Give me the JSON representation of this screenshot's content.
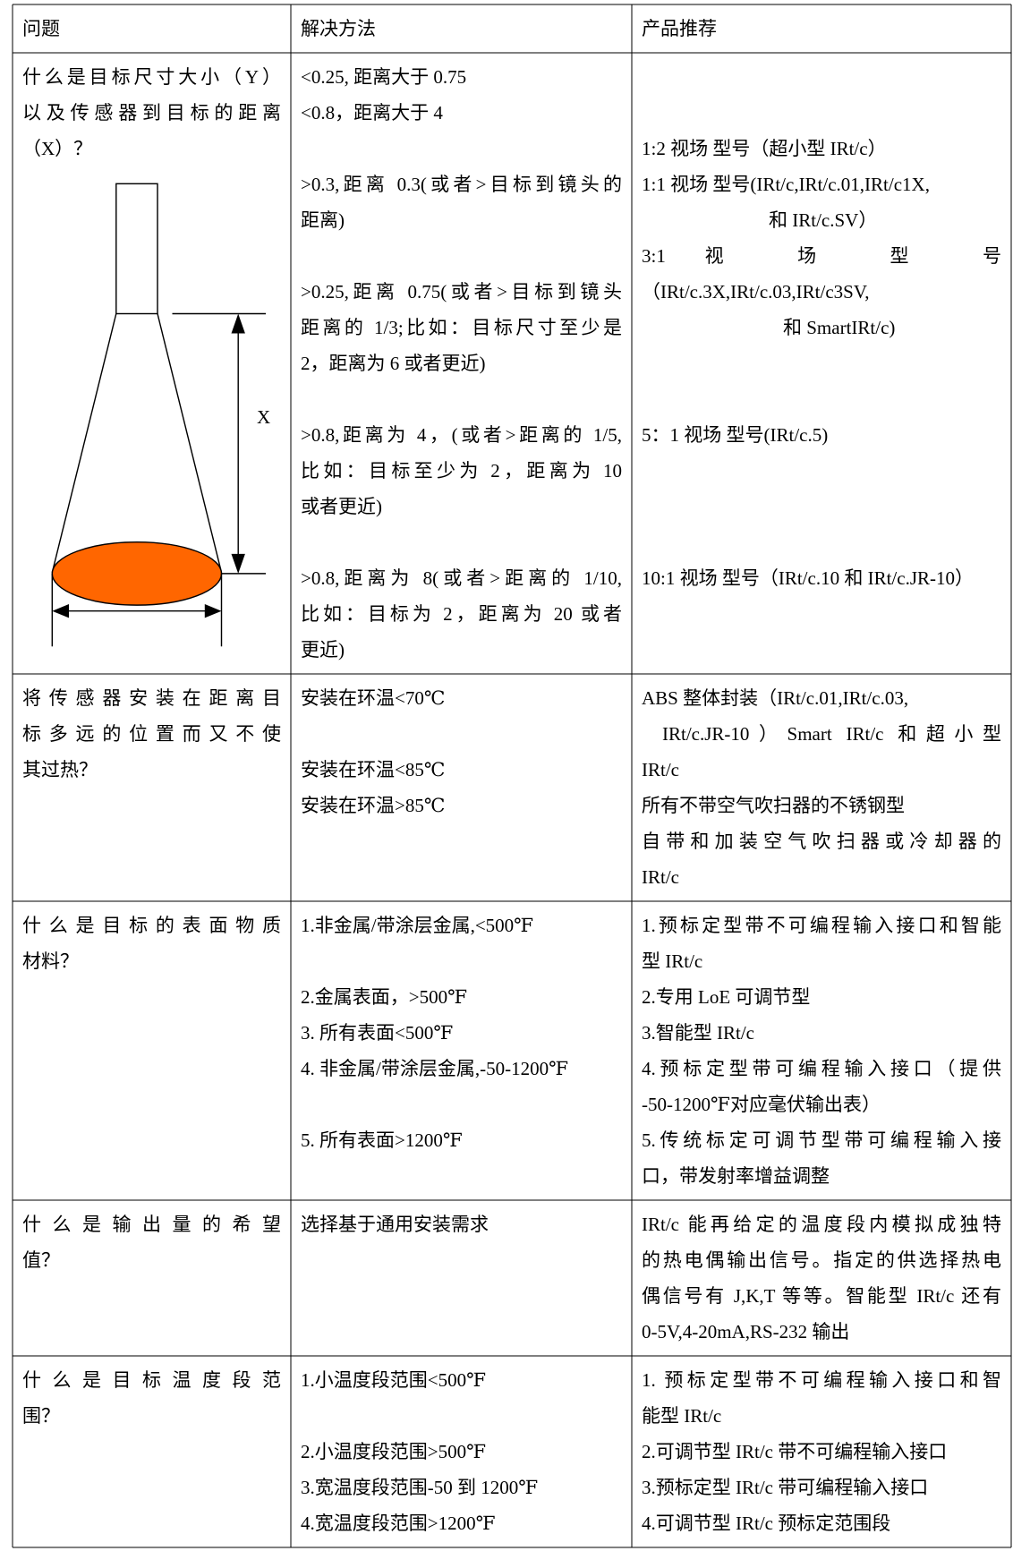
{
  "header": [
    "问题",
    "解决方法",
    "产品推荐"
  ],
  "diagram": {
    "label": "X"
  },
  "rows": [
    {
      "question": [
        "什么是目标尺寸大小（Y）",
        "以及传感器到目标的距离",
        "（X）？"
      ],
      "solution": [
        "<0.25, 距离大于 0.75",
        "<0.8，距离大于 4",
        ">0.3,距离 0.3(或者>目标到镜头的",
        "距离)",
        ">0.25,距离 0.75(或者>目标到镜头",
        "距离的 1/3;比如：目标尺寸至少是",
        "2，距离为 6 或者更近)",
        ">0.8,距离为 4，(或者>距离的 1/5,",
        "比如：目标至少为 2，距离为 10",
        "或者更近)",
        ">0.8,距离为 8(或者>距离的 1/10,",
        "比如：目标为 2，距离为 20 或者",
        "更近)"
      ],
      "products": [
        "1:2 视场 型号（超小型 IRt/c）",
        "1:1 视场 型号(IRt/c,IRt/c.01,IRt/c1X,",
        "和 IRt/c.SV）",
        "3:1 视 场 型 号",
        "（IRt/c.3X,IRt/c.03,IRt/c3SV,",
        "和 SmartIRt/c)",
        "5：1 视场 型号(IRt/c.5)",
        "10:1 视场 型号（IRt/c.10 和 IRt/c.JR-10）"
      ]
    },
    {
      "question": [
        "将传感器安装在距离目",
        "标多远的位置而又不使",
        "其过热？"
      ],
      "solution": [
        "安装在环温<70℃",
        "安装在环温<85℃",
        "安装在环温>85℃"
      ],
      "products": [
        "ABS 整体封装（IRt/c.01,IRt/c.03,",
        "IRt/c.JR-10）Smart IRt/c 和超小型",
        "IRt/c",
        "所有不带空气吹扫器的不锈钢型",
        "自带和加装空气吹扫器或冷却器的",
        "IRt/c"
      ]
    },
    {
      "question": [
        "什么是目标的表面物质",
        "材料？"
      ],
      "solution": [
        "1.非金属/带涂层金属,<500℉",
        "2.金属表面，>500℉",
        "3. 所有表面<500℉",
        "4. 非金属/带涂层金属,-50-1200℉",
        "5. 所有表面>1200℉"
      ],
      "products": [
        "1.预标定型带不可编程输入接口和智能",
        "型 IRt/c",
        "2.专用 LoE 可调节型",
        "3.智能型 IRt/c",
        "4.预标定型带可编程输入接口（提供",
        "-50-1200℉对应毫伏输出表）",
        "5.传统标定可调节型带可编程输入接",
        "口，带发射率增益调整"
      ]
    },
    {
      "question": [
        "什么是输出量的希望",
        "值？"
      ],
      "solution": [
        "选择基于通用安装需求"
      ],
      "products": [
        "IRt/c 能再给定的温度段内模拟成独特",
        "的热电偶输出信号。指定的供选择热电",
        "偶信号有 J,K,T 等等。智能型 IRt/c 还有",
        "0-5V,4-20mA,RS-232 输出"
      ]
    },
    {
      "question": [
        "什么是目标温度段范",
        "围？"
      ],
      "solution": [
        "1.小温度段范围<500℉",
        "2.小温度段范围>500℉",
        "3.宽温度段范围-50 到 1200℉",
        "4.宽温度段范围>1200℉"
      ],
      "products": [
        "1. 预标定型带不可编程输入接口和智",
        "能型 IRt/c",
        "2.可调节型 IRt/c 带不可编程输入接口",
        "3.预标定型 IRt/c 带可编程输入接口",
        "4.可调节型 IRt/c 预标定范围段"
      ]
    }
  ]
}
